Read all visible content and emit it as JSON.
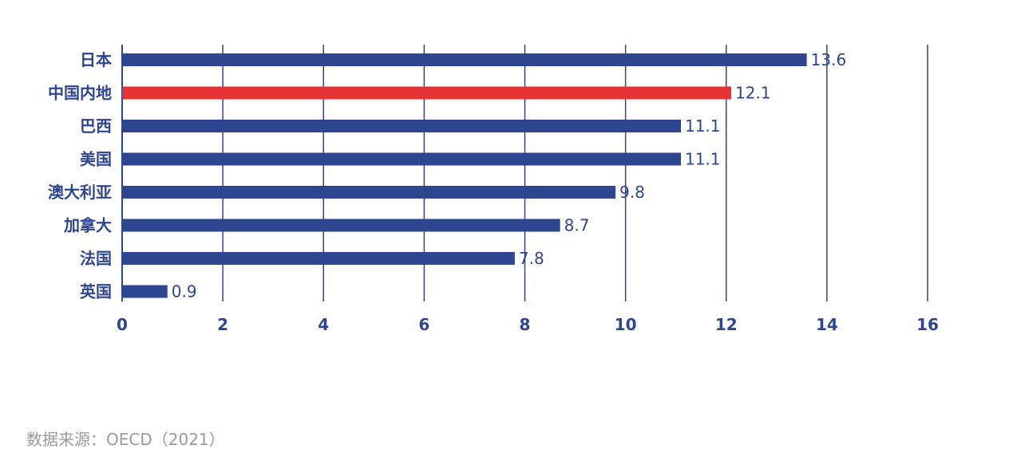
{
  "chart_data": {
    "type": "bar",
    "orientation": "horizontal",
    "categories": [
      "日本",
      "中国内地",
      "巴西",
      "美国",
      "澳大利亚",
      "加拿大",
      "法国",
      "英国"
    ],
    "values": [
      13.6,
      12.1,
      11.1,
      11.1,
      9.8,
      8.7,
      7.8,
      0.9
    ],
    "value_labels": [
      "13.6",
      "12.1",
      "11.1",
      "11.1",
      "9.8",
      "8.7",
      "7.8",
      "0.9"
    ],
    "highlight_category": "中国内地",
    "xlim": [
      0,
      16
    ],
    "xticks": [
      0,
      2,
      4,
      6,
      8,
      10,
      12,
      14,
      16
    ],
    "xtick_labels": [
      "0",
      "2",
      "4",
      "6",
      "8",
      "10",
      "12",
      "14",
      "16"
    ],
    "title": "",
    "xlabel": "",
    "ylabel": "",
    "grid": "vertical",
    "legend": "none",
    "colors": {
      "bar": "#2e4590",
      "highlight": "#e63333",
      "grid": "#2e4590",
      "text": "#2e4590",
      "source_text": "#9a9a9a"
    }
  },
  "source_note": "数据来源：OECD（2021）"
}
